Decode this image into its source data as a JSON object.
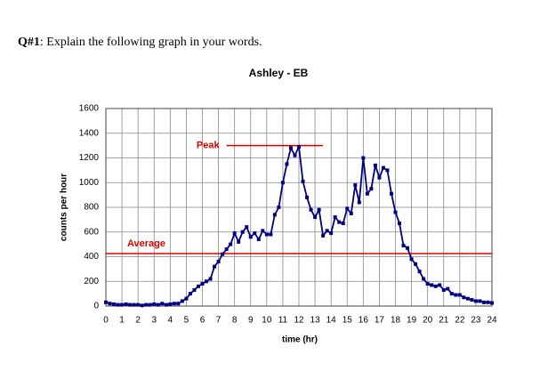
{
  "question": {
    "label": "Q#1",
    "text": ": Explain the following graph in your words."
  },
  "chart_data": {
    "type": "line",
    "title": "Ashley - EB",
    "xlabel": "time (hr)",
    "ylabel": "counts per hour",
    "xlim": [
      0,
      24
    ],
    "ylim": [
      0,
      1600
    ],
    "xticks": [
      0,
      1,
      2,
      3,
      4,
      5,
      6,
      7,
      8,
      9,
      10,
      11,
      12,
      13,
      14,
      15,
      16,
      17,
      18,
      19,
      20,
      21,
      22,
      23,
      24
    ],
    "yticks": [
      0,
      200,
      400,
      600,
      800,
      1000,
      1200,
      1400,
      1600
    ],
    "grid": true,
    "series": [
      {
        "color": "#000080",
        "x": [
          0,
          0.25,
          0.5,
          0.75,
          1,
          1.25,
          1.5,
          1.75,
          2,
          2.25,
          2.5,
          2.75,
          3,
          3.25,
          3.5,
          3.75,
          4,
          4.25,
          4.5,
          4.75,
          5,
          5.25,
          5.5,
          5.75,
          6,
          6.25,
          6.5,
          6.75,
          7,
          7.25,
          7.5,
          7.75,
          8,
          8.25,
          8.5,
          8.75,
          9,
          9.25,
          9.5,
          9.75,
          10,
          10.25,
          10.5,
          10.75,
          11,
          11.25,
          11.5,
          11.75,
          12,
          12.25,
          12.5,
          12.75,
          13,
          13.25,
          13.5,
          13.75,
          14,
          14.25,
          14.5,
          14.75,
          15,
          15.25,
          15.5,
          15.75,
          16,
          16.25,
          16.5,
          16.75,
          17,
          17.25,
          17.5,
          17.75,
          18,
          18.25,
          18.5,
          18.75,
          19,
          19.25,
          19.5,
          19.75,
          20,
          20.25,
          20.5,
          20.75,
          21,
          21.25,
          21.5,
          21.75,
          22,
          22.25,
          22.5,
          22.75,
          23,
          23.25,
          23.5,
          23.75,
          24
        ],
        "values": [
          30,
          20,
          15,
          10,
          10,
          15,
          10,
          10,
          10,
          5,
          10,
          10,
          15,
          10,
          20,
          10,
          15,
          20,
          20,
          40,
          60,
          100,
          130,
          160,
          180,
          200,
          220,
          320,
          360,
          420,
          460,
          500,
          590,
          520,
          600,
          640,
          560,
          590,
          540,
          610,
          580,
          580,
          740,
          800,
          1000,
          1150,
          1280,
          1220,
          1290,
          1010,
          880,
          780,
          720,
          780,
          570,
          610,
          590,
          720,
          680,
          670,
          790,
          750,
          980,
          840,
          1200,
          910,
          950,
          1140,
          1040,
          1120,
          1100,
          910,
          760,
          670,
          490,
          470,
          380,
          340,
          280,
          220,
          180,
          170,
          160,
          170,
          130,
          140,
          100,
          90,
          90,
          70,
          60,
          50,
          40,
          40,
          30,
          30,
          25
        ]
      }
    ],
    "annotations": [
      {
        "text": "Peak",
        "y": 1300,
        "x": [
          7.5,
          13.5
        ],
        "color": "#dd0000"
      },
      {
        "text": "Average",
        "y": 425,
        "x": [
          0,
          24
        ],
        "color": "#dd0000"
      }
    ]
  }
}
